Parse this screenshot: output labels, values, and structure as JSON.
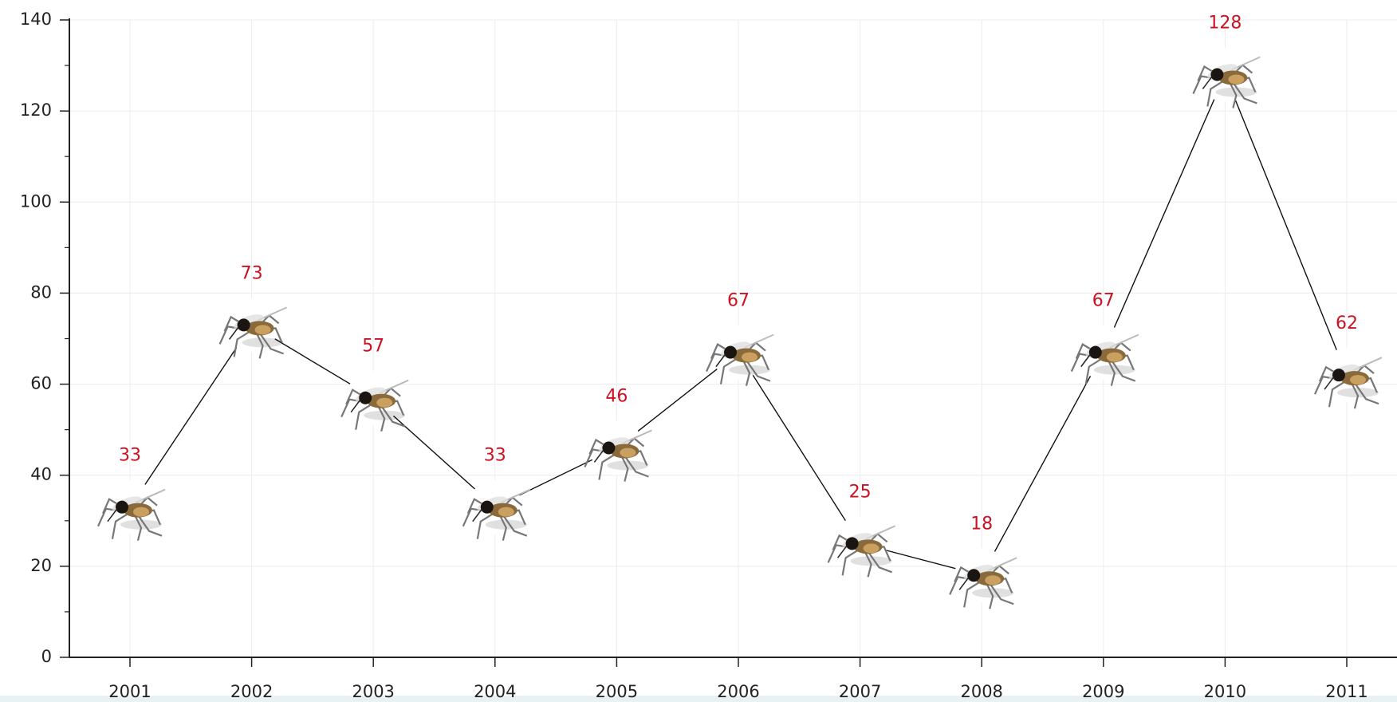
{
  "chart_data": {
    "type": "line",
    "categories": [
      "2001",
      "2002",
      "2003",
      "2004",
      "2005",
      "2006",
      "2007",
      "2008",
      "2009",
      "2010",
      "2011"
    ],
    "values": [
      33,
      73,
      57,
      33,
      46,
      67,
      25,
      18,
      67,
      128,
      62
    ],
    "ylim": [
      0,
      140
    ],
    "yticks": [
      0,
      20,
      40,
      60,
      80,
      100,
      120,
      140
    ],
    "grid": true,
    "color": "#111111",
    "label_color": "#cc1122"
  }
}
